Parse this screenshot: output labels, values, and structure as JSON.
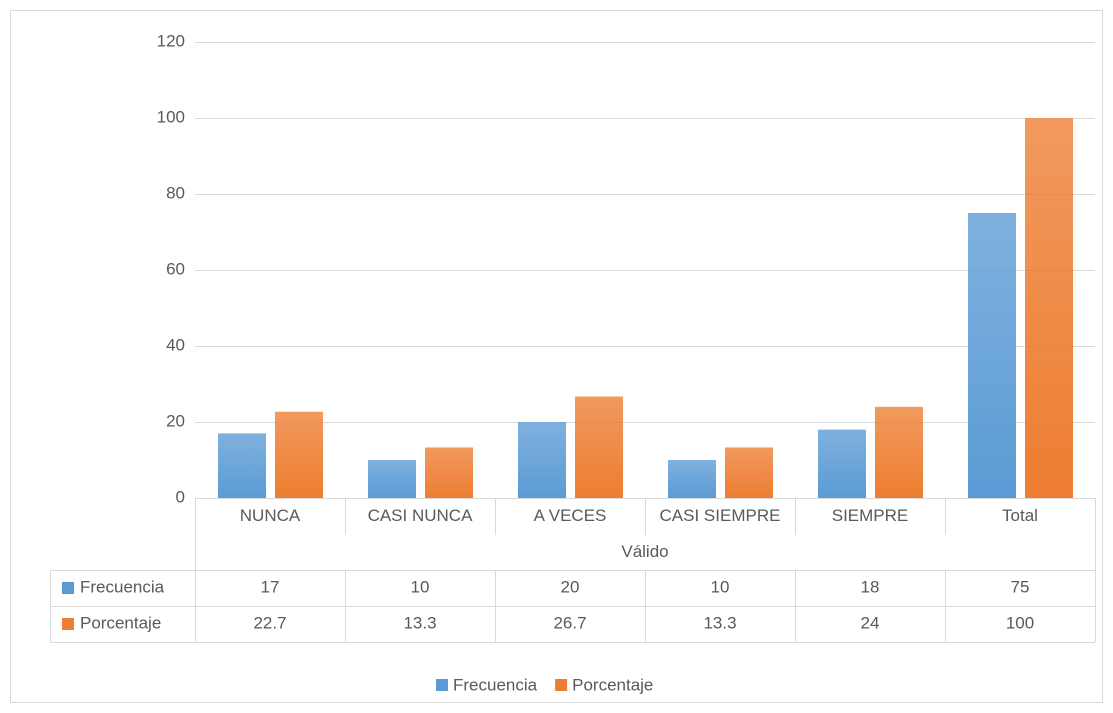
{
  "chart_data": {
    "type": "bar",
    "categories": [
      "NUNCA",
      "CASI NUNCA",
      "A VECES",
      "CASI SIEMPRE",
      "SIEMPRE",
      "Total"
    ],
    "group_label": "Válido",
    "series": [
      {
        "name": "Frecuencia",
        "color": "#5b9bd5",
        "values": [
          17,
          10,
          20,
          10,
          18,
          75
        ]
      },
      {
        "name": "Porcentaje",
        "color": "#ed7d31",
        "values": [
          22.7,
          13.3,
          26.7,
          13.3,
          24,
          100
        ]
      }
    ],
    "ylim": [
      0,
      120
    ],
    "yticks": [
      0,
      20,
      40,
      60,
      80,
      100,
      120
    ],
    "grid": true,
    "legend": "bottom",
    "data_table": true
  }
}
